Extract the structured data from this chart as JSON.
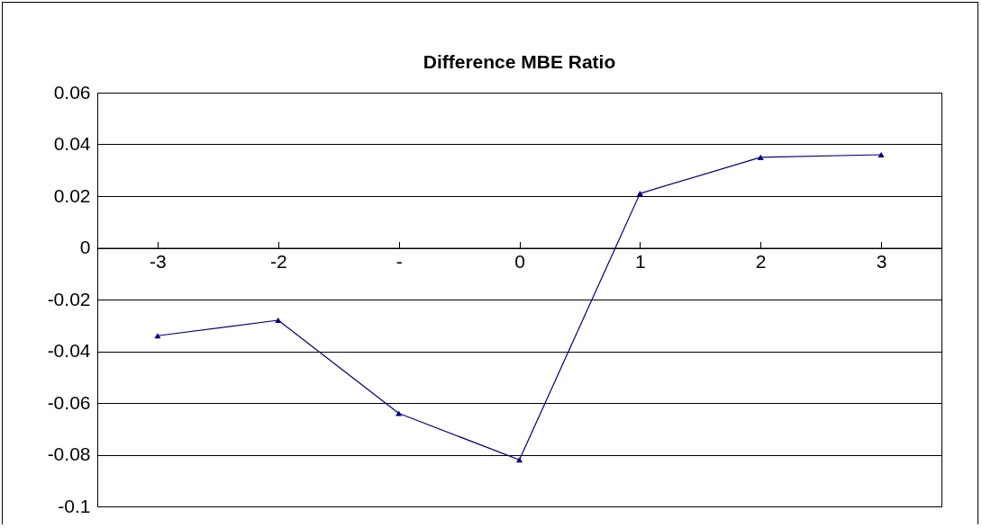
{
  "chart_data": {
    "type": "line",
    "title": "Difference MBE Ratio",
    "categories": [
      "-3",
      "-2",
      "-",
      "0",
      "1",
      "2",
      "3"
    ],
    "series": [
      {
        "color": "#000080",
        "values": [
          -0.034,
          -0.028,
          -0.064,
          -0.082,
          0.021,
          0.035,
          0.036
        ]
      }
    ],
    "ylim": [
      -0.1,
      0.06
    ],
    "yticks": [
      -0.1,
      -0.08,
      -0.06,
      -0.04,
      -0.02,
      0,
      0.02,
      0.04,
      0.06
    ],
    "grid": "y",
    "legend": false,
    "marker": "triangle",
    "line_style": "solid"
  }
}
